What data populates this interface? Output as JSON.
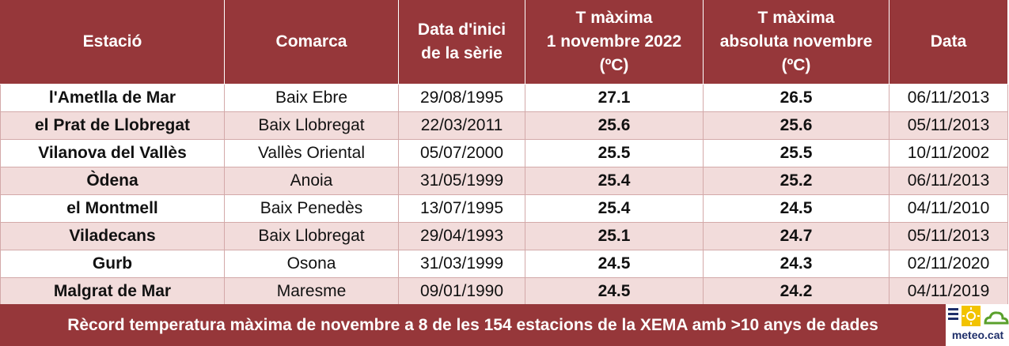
{
  "table": {
    "headers": [
      [
        "Estació"
      ],
      [
        "Comarca"
      ],
      [
        "Data d'inici",
        "de la sèrie"
      ],
      [
        "T màxima",
        "1 novembre 2022",
        "(ºC)"
      ],
      [
        "T màxima",
        "absoluta novembre",
        "(ºC)"
      ],
      [
        "Data"
      ]
    ],
    "rows": [
      [
        "l'Ametlla de Mar",
        "Baix Ebre",
        "29/08/1995",
        "27.1",
        "26.5",
        "06/11/2013"
      ],
      [
        "el Prat de Llobregat",
        "Baix Llobregat",
        "22/03/2011",
        "25.6",
        "25.6",
        "05/11/2013"
      ],
      [
        "Vilanova del Vallès",
        "Vallès Oriental",
        "05/07/2000",
        "25.5",
        "25.5",
        "10/11/2002"
      ],
      [
        "Òdena",
        "Anoia",
        "31/05/1999",
        "25.4",
        "25.2",
        "06/11/2013"
      ],
      [
        "el Montmell",
        "Baix Penedès",
        "13/07/1995",
        "25.4",
        "24.5",
        "04/11/2010"
      ],
      [
        "Viladecans",
        "Baix Llobregat",
        "29/04/1993",
        "25.1",
        "24.7",
        "05/11/2013"
      ],
      [
        "Gurb",
        "Osona",
        "31/03/1999",
        "24.5",
        "24.3",
        "02/11/2020"
      ],
      [
        "Malgrat de Mar",
        "Maresme",
        "09/01/1990",
        "24.5",
        "24.2",
        "04/11/2019"
      ]
    ]
  },
  "footer": {
    "text": "Rècord temperatura màxima de novembre a 8 de les 154 estacions de la XEMA amb >10 anys de dades"
  },
  "logo": {
    "text": "meteo.cat",
    "icons": [
      "lines-icon",
      "sun-icon",
      "cloud-icon"
    ],
    "colors": {
      "navy": "#1f2f6a",
      "sun": "#f2c300",
      "green": "#5aa02c"
    }
  },
  "colors": {
    "header_bg": "#96373a",
    "row_alt_bg": "#f2dcdb",
    "row_bg": "#ffffff"
  }
}
